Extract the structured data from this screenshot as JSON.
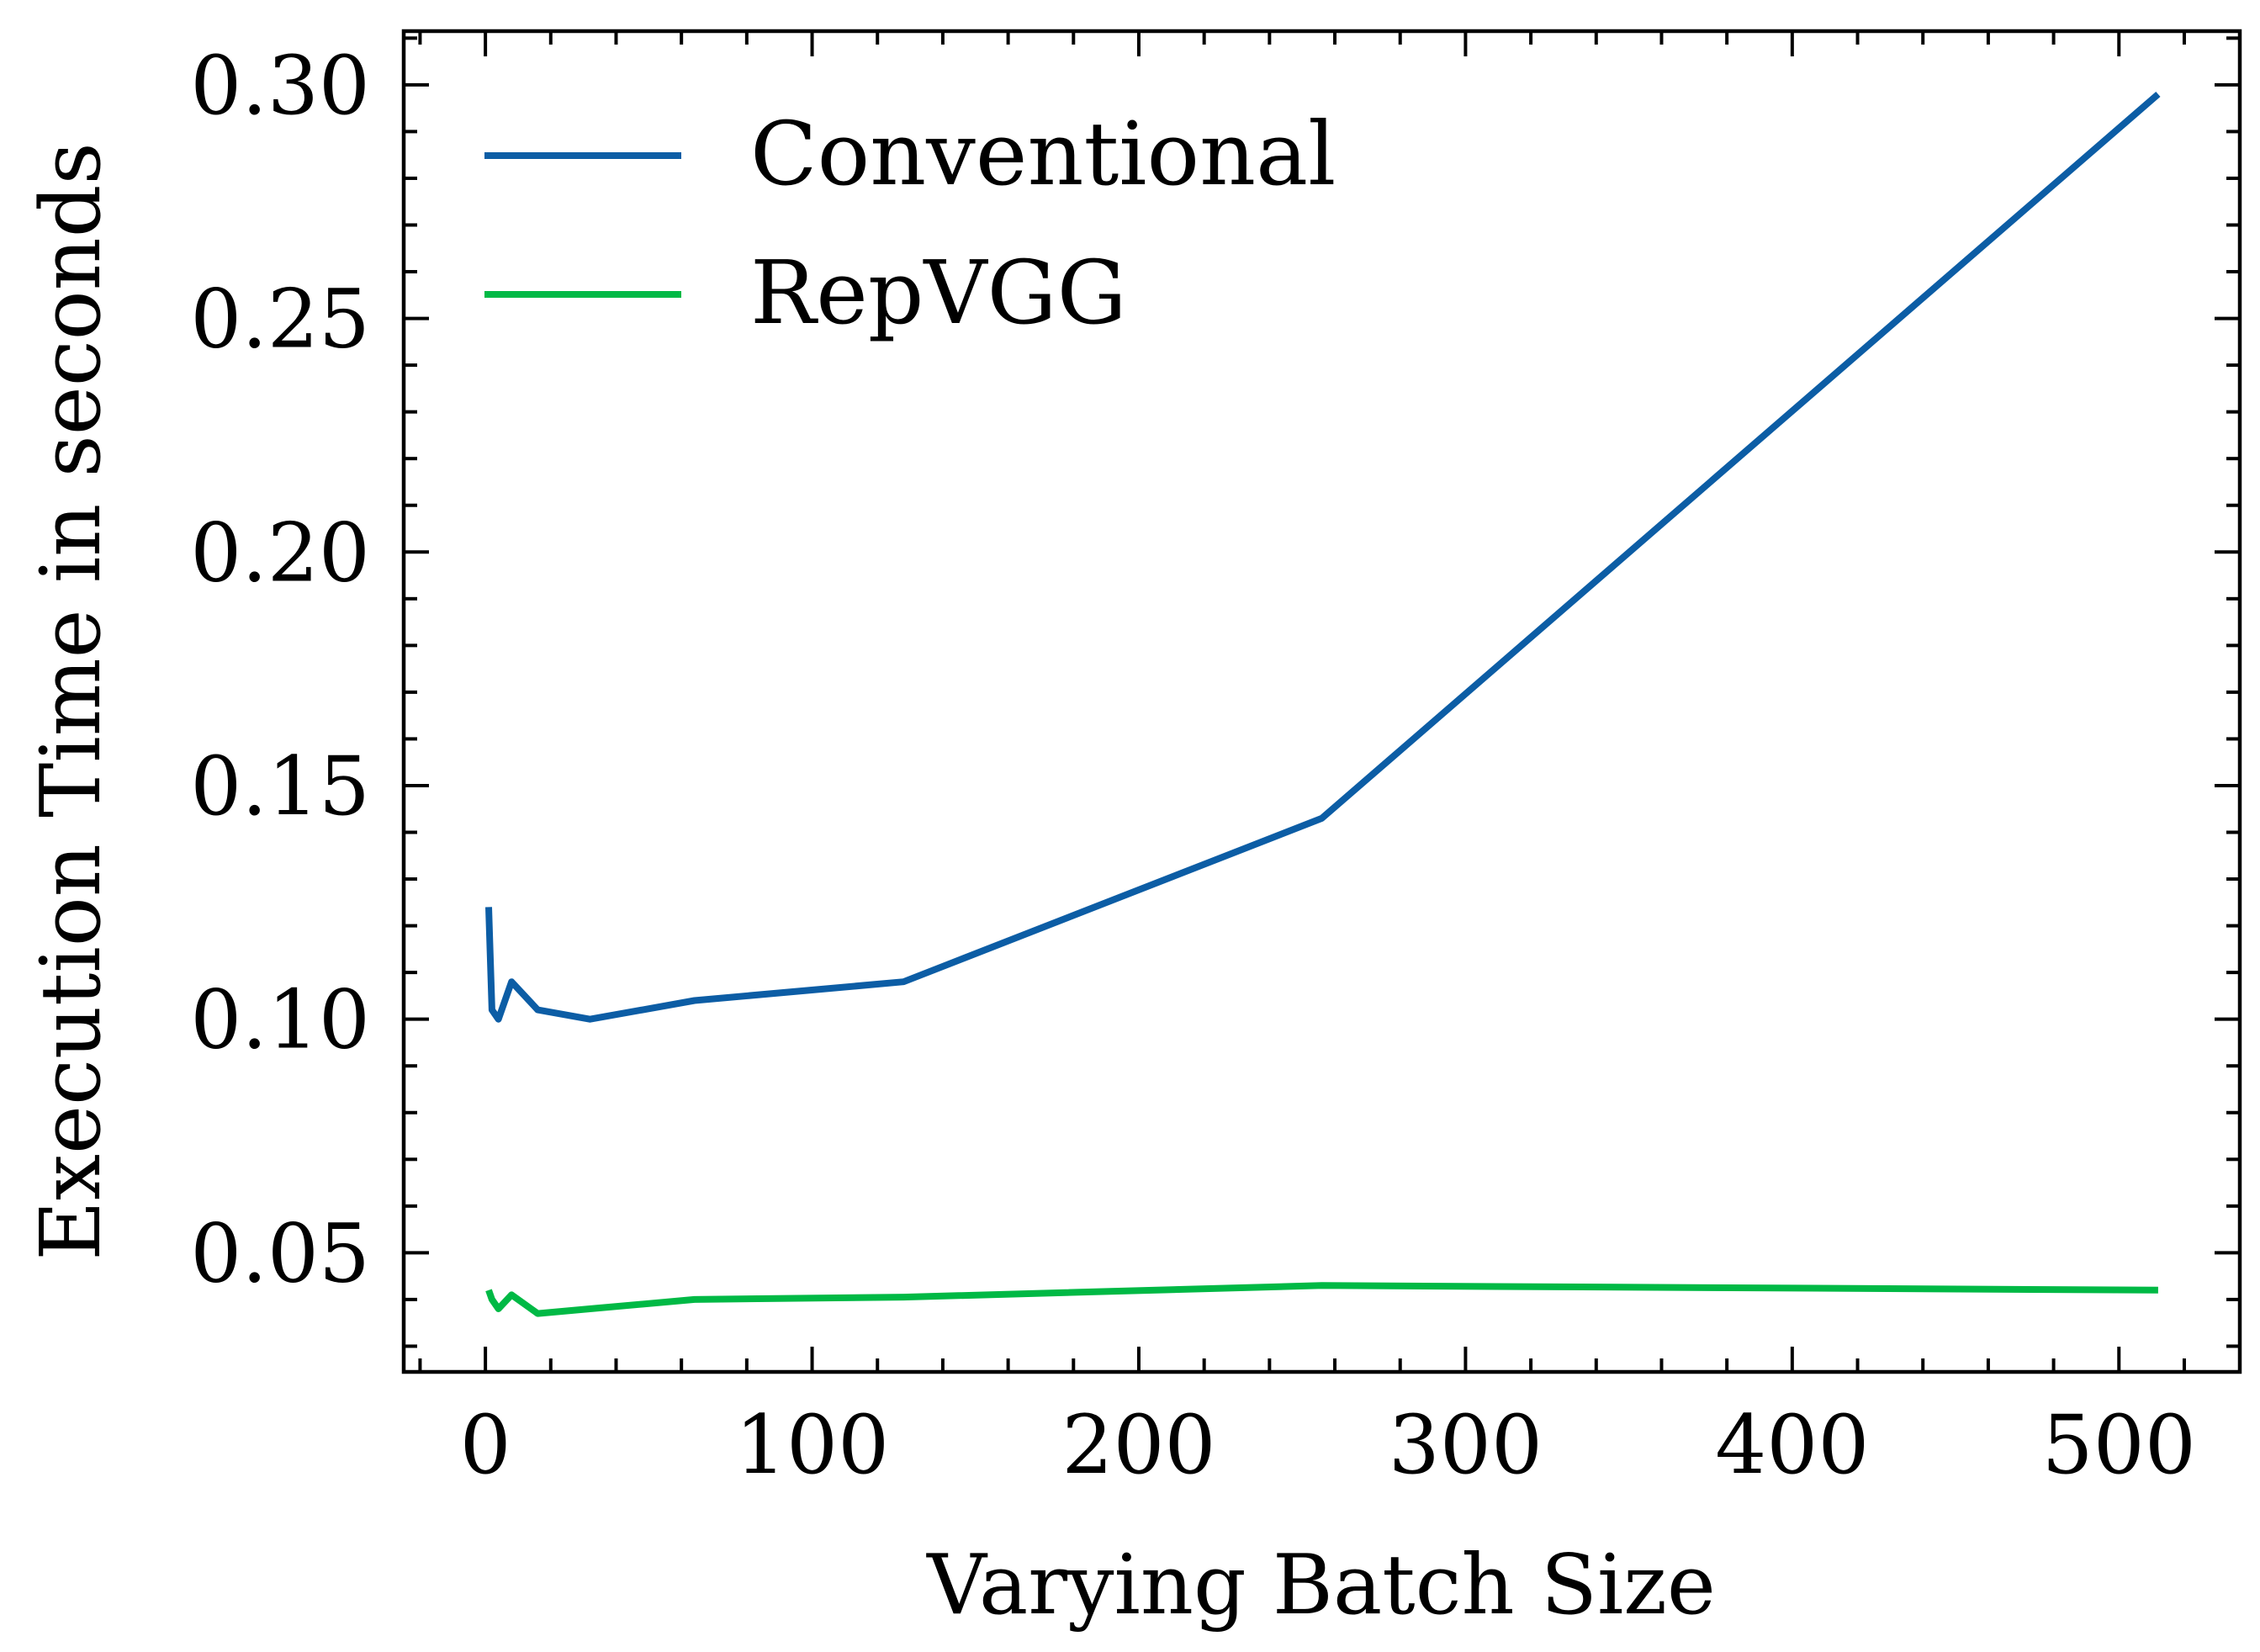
{
  "chart_data": {
    "type": "line",
    "title": "",
    "xlabel": "Varying Batch Size",
    "ylabel": "Execution Time in seconds",
    "xlim": [
      -25,
      537
    ],
    "ylim": [
      0.0245,
      0.3115
    ],
    "xticks": [
      0,
      100,
      200,
      300,
      400,
      500
    ],
    "xtick_labels": [
      "0",
      "100",
      "200",
      "300",
      "400",
      "500"
    ],
    "yticks": [
      0.05,
      0.1,
      0.15,
      0.2,
      0.25,
      0.3
    ],
    "ytick_labels": [
      "0.05",
      "0.10",
      "0.15",
      "0.20",
      "0.25",
      "0.30"
    ],
    "x_minor_step": 20,
    "y_minor_step": 0.01,
    "grid": false,
    "legend_position": "top-left",
    "x": [
      1,
      2,
      4,
      8,
      16,
      32,
      64,
      128,
      256,
      512
    ],
    "series": [
      {
        "name": "Conventional",
        "color": "#0C5DA5",
        "values": [
          0.124,
          0.102,
          0.1,
          0.108,
          0.102,
          0.1,
          0.104,
          0.108,
          0.143,
          0.298
        ]
      },
      {
        "name": "RepVGG",
        "color": "#00B945",
        "values": [
          0.042,
          0.04,
          0.038,
          0.041,
          0.037,
          0.038,
          0.04,
          0.0405,
          0.043,
          0.042
        ]
      }
    ]
  }
}
